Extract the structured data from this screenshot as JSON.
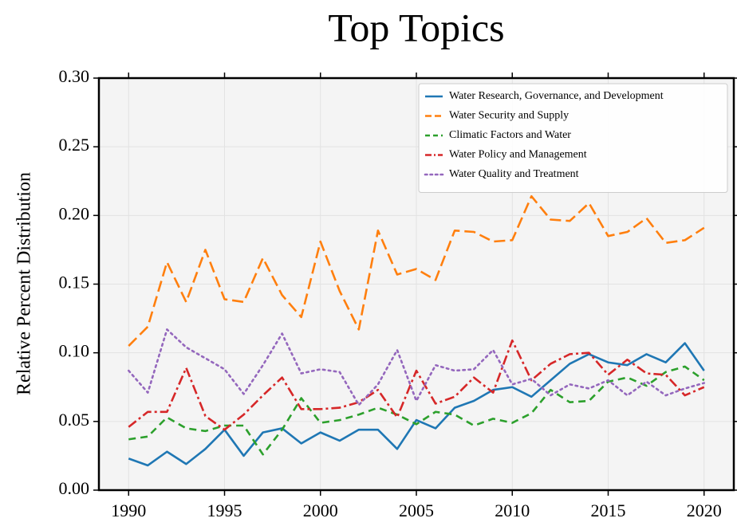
{
  "chart_data": {
    "type": "line",
    "title": "Top Topics",
    "y_label": "Relative Percent Distribution",
    "x": [
      1990,
      1991,
      1992,
      1993,
      1994,
      1995,
      1996,
      1997,
      1998,
      1999,
      2000,
      2001,
      2002,
      2003,
      2004,
      2005,
      2006,
      2007,
      2008,
      2009,
      2010,
      2011,
      2012,
      2013,
      2014,
      2015,
      2016,
      2017,
      2018,
      2019,
      2020
    ],
    "series": [
      {
        "name": "Water Research, Governance, and Development",
        "color": "#1f77b4",
        "linestyle": "solid",
        "values": [
          0.023,
          0.018,
          0.028,
          0.019,
          0.03,
          0.044,
          0.025,
          0.042,
          0.045,
          0.034,
          0.042,
          0.036,
          0.044,
          0.044,
          0.03,
          0.051,
          0.045,
          0.06,
          0.065,
          0.073,
          0.075,
          0.068,
          0.08,
          0.092,
          0.099,
          0.093,
          0.091,
          0.099,
          0.093,
          0.107,
          0.087
        ]
      },
      {
        "name": "Water Security and Supply",
        "color": "#ff7f0e",
        "linestyle": "dashed",
        "values": [
          0.105,
          0.119,
          0.166,
          0.137,
          0.175,
          0.139,
          0.137,
          0.169,
          0.142,
          0.126,
          0.181,
          0.145,
          0.117,
          0.189,
          0.157,
          0.161,
          0.153,
          0.189,
          0.188,
          0.181,
          0.182,
          0.214,
          0.197,
          0.196,
          0.209,
          0.185,
          0.188,
          0.198,
          0.18,
          0.182,
          0.191
        ]
      },
      {
        "name": "Climatic Factors and Water",
        "color": "#2ca02c",
        "linestyle": "short-dashed",
        "values": [
          0.037,
          0.039,
          0.053,
          0.045,
          0.043,
          0.047,
          0.047,
          0.026,
          0.044,
          0.067,
          0.049,
          0.051,
          0.055,
          0.06,
          0.055,
          0.048,
          0.057,
          0.055,
          0.047,
          0.052,
          0.049,
          0.056,
          0.073,
          0.064,
          0.065,
          0.079,
          0.082,
          0.076,
          0.086,
          0.09,
          0.08
        ]
      },
      {
        "name": "Water Policy and Management",
        "color": "#d62728",
        "linestyle": "dashdot",
        "values": [
          0.046,
          0.057,
          0.057,
          0.089,
          0.054,
          0.044,
          0.055,
          0.069,
          0.082,
          0.059,
          0.059,
          0.06,
          0.064,
          0.073,
          0.053,
          0.087,
          0.063,
          0.068,
          0.082,
          0.071,
          0.109,
          0.08,
          0.092,
          0.099,
          0.1,
          0.084,
          0.095,
          0.085,
          0.084,
          0.069,
          0.075
        ]
      },
      {
        "name": "Water Quality and Treatment",
        "color": "#9467bd",
        "linestyle": "dotted",
        "values": [
          0.087,
          0.071,
          0.117,
          0.104,
          0.096,
          0.088,
          0.07,
          0.091,
          0.114,
          0.085,
          0.088,
          0.086,
          0.062,
          0.077,
          0.102,
          0.065,
          0.091,
          0.087,
          0.088,
          0.102,
          0.077,
          0.081,
          0.069,
          0.077,
          0.074,
          0.08,
          0.069,
          0.079,
          0.069,
          0.074,
          0.078
        ]
      }
    ],
    "xlim": [
      1988.45,
      2021.55
    ],
    "ylim": [
      0,
      0.3
    ],
    "xticks": [
      1990,
      1995,
      2000,
      2005,
      2010,
      2015,
      2020
    ],
    "yticks": [
      {
        "value": 0,
        "label": "0.00"
      },
      {
        "value": 0.05,
        "label": "0.05"
      },
      {
        "value": 0.1,
        "label": "0.10"
      },
      {
        "value": 0.15,
        "label": "0.15"
      },
      {
        "value": 0.2,
        "label": "0.20"
      },
      {
        "value": 0.25,
        "label": "0.25"
      },
      {
        "value": 0.3,
        "label": "0.30"
      }
    ],
    "grid": true,
    "legend": "upper right"
  }
}
